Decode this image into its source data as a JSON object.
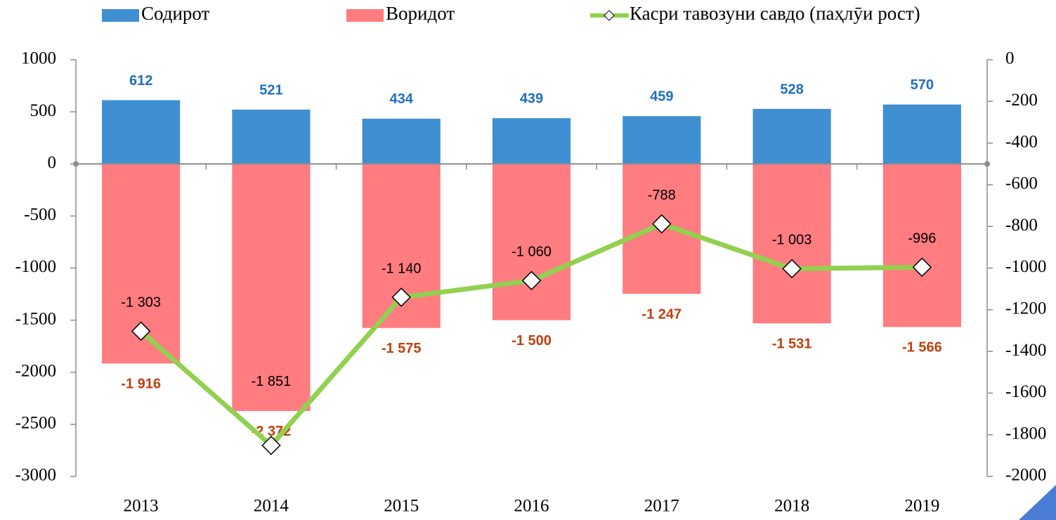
{
  "chart_data": {
    "type": "bar",
    "categories": [
      "2013",
      "2014",
      "2015",
      "2016",
      "2017",
      "2018",
      "2019"
    ],
    "series": [
      {
        "name": "Содирот",
        "color": "#3f8fd2",
        "label_color": "#1f6fbf",
        "values": [
          612,
          521,
          434,
          439,
          459,
          528,
          570
        ]
      },
      {
        "name": "Воридот",
        "color": "#ff7c80",
        "label_color": "#c0400f",
        "values": [
          -1916,
          -2372,
          -1575,
          -1500,
          -1247,
          -1531,
          -1566
        ],
        "value_labels": [
          "-1 916",
          "-2 372",
          "-1 575",
          "-1 500",
          "-1 247",
          "-1 531",
          "-1 566"
        ]
      },
      {
        "name": "Касри тавозуни савдо (паҳлӯи рост)",
        "type": "line",
        "axis": "y2",
        "color": "#92d050",
        "label_color": "#000000",
        "values": [
          -1303,
          -1851,
          -1140,
          -1060,
          -788,
          -1003,
          -996
        ],
        "value_labels": [
          "-1 303",
          "-1 851",
          "-1 140",
          "-1 060",
          "-788",
          "-1 003",
          "-996"
        ]
      }
    ],
    "ylim": [
      -3000,
      1000
    ],
    "yticks": [
      -3000,
      -2500,
      -2000,
      -1500,
      -1000,
      -500,
      0,
      500,
      1000
    ],
    "y2lim": [
      -2000,
      0
    ],
    "y2ticks": [
      -2000,
      -1800,
      -1600,
      -1400,
      -1200,
      -1000,
      -800,
      -600,
      -400,
      -200,
      0
    ],
    "legend": "top",
    "grid": false
  }
}
